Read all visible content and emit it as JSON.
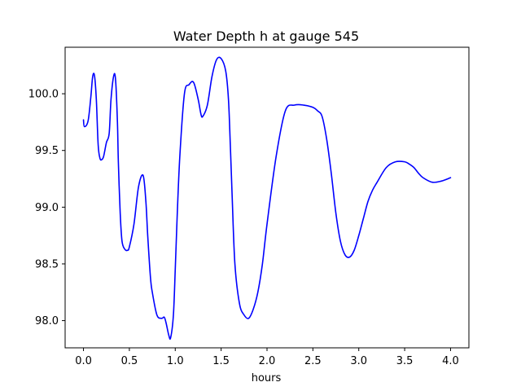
{
  "chart_data": {
    "type": "line",
    "title": "Water Depth h at gauge 545",
    "xlabel": "hours",
    "ylabel": "",
    "xlim": [
      -0.2,
      4.2
    ],
    "ylim": [
      97.76,
      100.41
    ],
    "xticks": [
      0.0,
      0.5,
      1.0,
      1.5,
      2.0,
      2.5,
      3.0,
      3.5,
      4.0
    ],
    "xtick_labels": [
      "0.0",
      "0.5",
      "1.0",
      "1.5",
      "2.0",
      "2.5",
      "3.0",
      "3.5",
      "4.0"
    ],
    "yticks": [
      98.0,
      98.5,
      99.0,
      99.5,
      100.0
    ],
    "ytick_labels": [
      "98.0",
      "98.5",
      "99.0",
      "99.5",
      "100.0"
    ],
    "grid": false,
    "legend": "none",
    "series": [
      {
        "color": "#0000ff",
        "x": [
          0.0,
          0.01,
          0.05,
          0.08,
          0.1,
          0.12,
          0.14,
          0.16,
          0.18,
          0.2,
          0.22,
          0.25,
          0.28,
          0.3,
          0.33,
          0.35,
          0.37,
          0.38,
          0.4,
          0.42,
          0.45,
          0.48,
          0.5,
          0.55,
          0.6,
          0.65,
          0.68,
          0.7,
          0.73,
          0.75,
          0.8,
          0.85,
          0.88,
          0.9,
          0.93,
          0.95,
          0.98,
          1.0,
          1.02,
          1.05,
          1.1,
          1.15,
          1.2,
          1.25,
          1.28,
          1.3,
          1.35,
          1.4,
          1.45,
          1.5,
          1.55,
          1.58,
          1.6,
          1.62,
          1.65,
          1.7,
          1.75,
          1.8,
          1.85,
          1.9,
          1.95,
          2.0,
          2.1,
          2.2,
          2.3,
          2.4,
          2.5,
          2.55,
          2.6,
          2.65,
          2.7,
          2.75,
          2.8,
          2.85,
          2.9,
          2.95,
          3.0,
          3.05,
          3.1,
          3.15,
          3.2,
          3.3,
          3.4,
          3.5,
          3.55,
          3.6,
          3.65,
          3.7,
          3.8,
          3.9,
          4.0
        ],
        "y": [
          99.77,
          99.71,
          99.76,
          99.97,
          100.15,
          100.16,
          99.95,
          99.55,
          99.43,
          99.42,
          99.45,
          99.57,
          99.65,
          99.95,
          100.16,
          100.12,
          99.75,
          99.4,
          98.95,
          98.7,
          98.63,
          98.62,
          98.65,
          98.85,
          99.18,
          99.28,
          99.05,
          98.75,
          98.38,
          98.25,
          98.05,
          98.02,
          98.03,
          97.98,
          97.87,
          97.85,
          98.05,
          98.45,
          98.9,
          99.45,
          100.0,
          100.08,
          100.1,
          99.95,
          99.82,
          99.8,
          99.9,
          100.15,
          100.3,
          100.31,
          100.2,
          99.95,
          99.55,
          99.1,
          98.5,
          98.15,
          98.05,
          98.02,
          98.1,
          98.25,
          98.5,
          98.85,
          99.45,
          99.85,
          99.9,
          99.9,
          99.88,
          99.85,
          99.8,
          99.6,
          99.3,
          98.95,
          98.7,
          98.58,
          98.56,
          98.62,
          98.75,
          98.9,
          99.05,
          99.15,
          99.22,
          99.35,
          99.4,
          99.4,
          99.38,
          99.35,
          99.3,
          99.26,
          99.22,
          99.23,
          99.26
        ]
      }
    ]
  }
}
